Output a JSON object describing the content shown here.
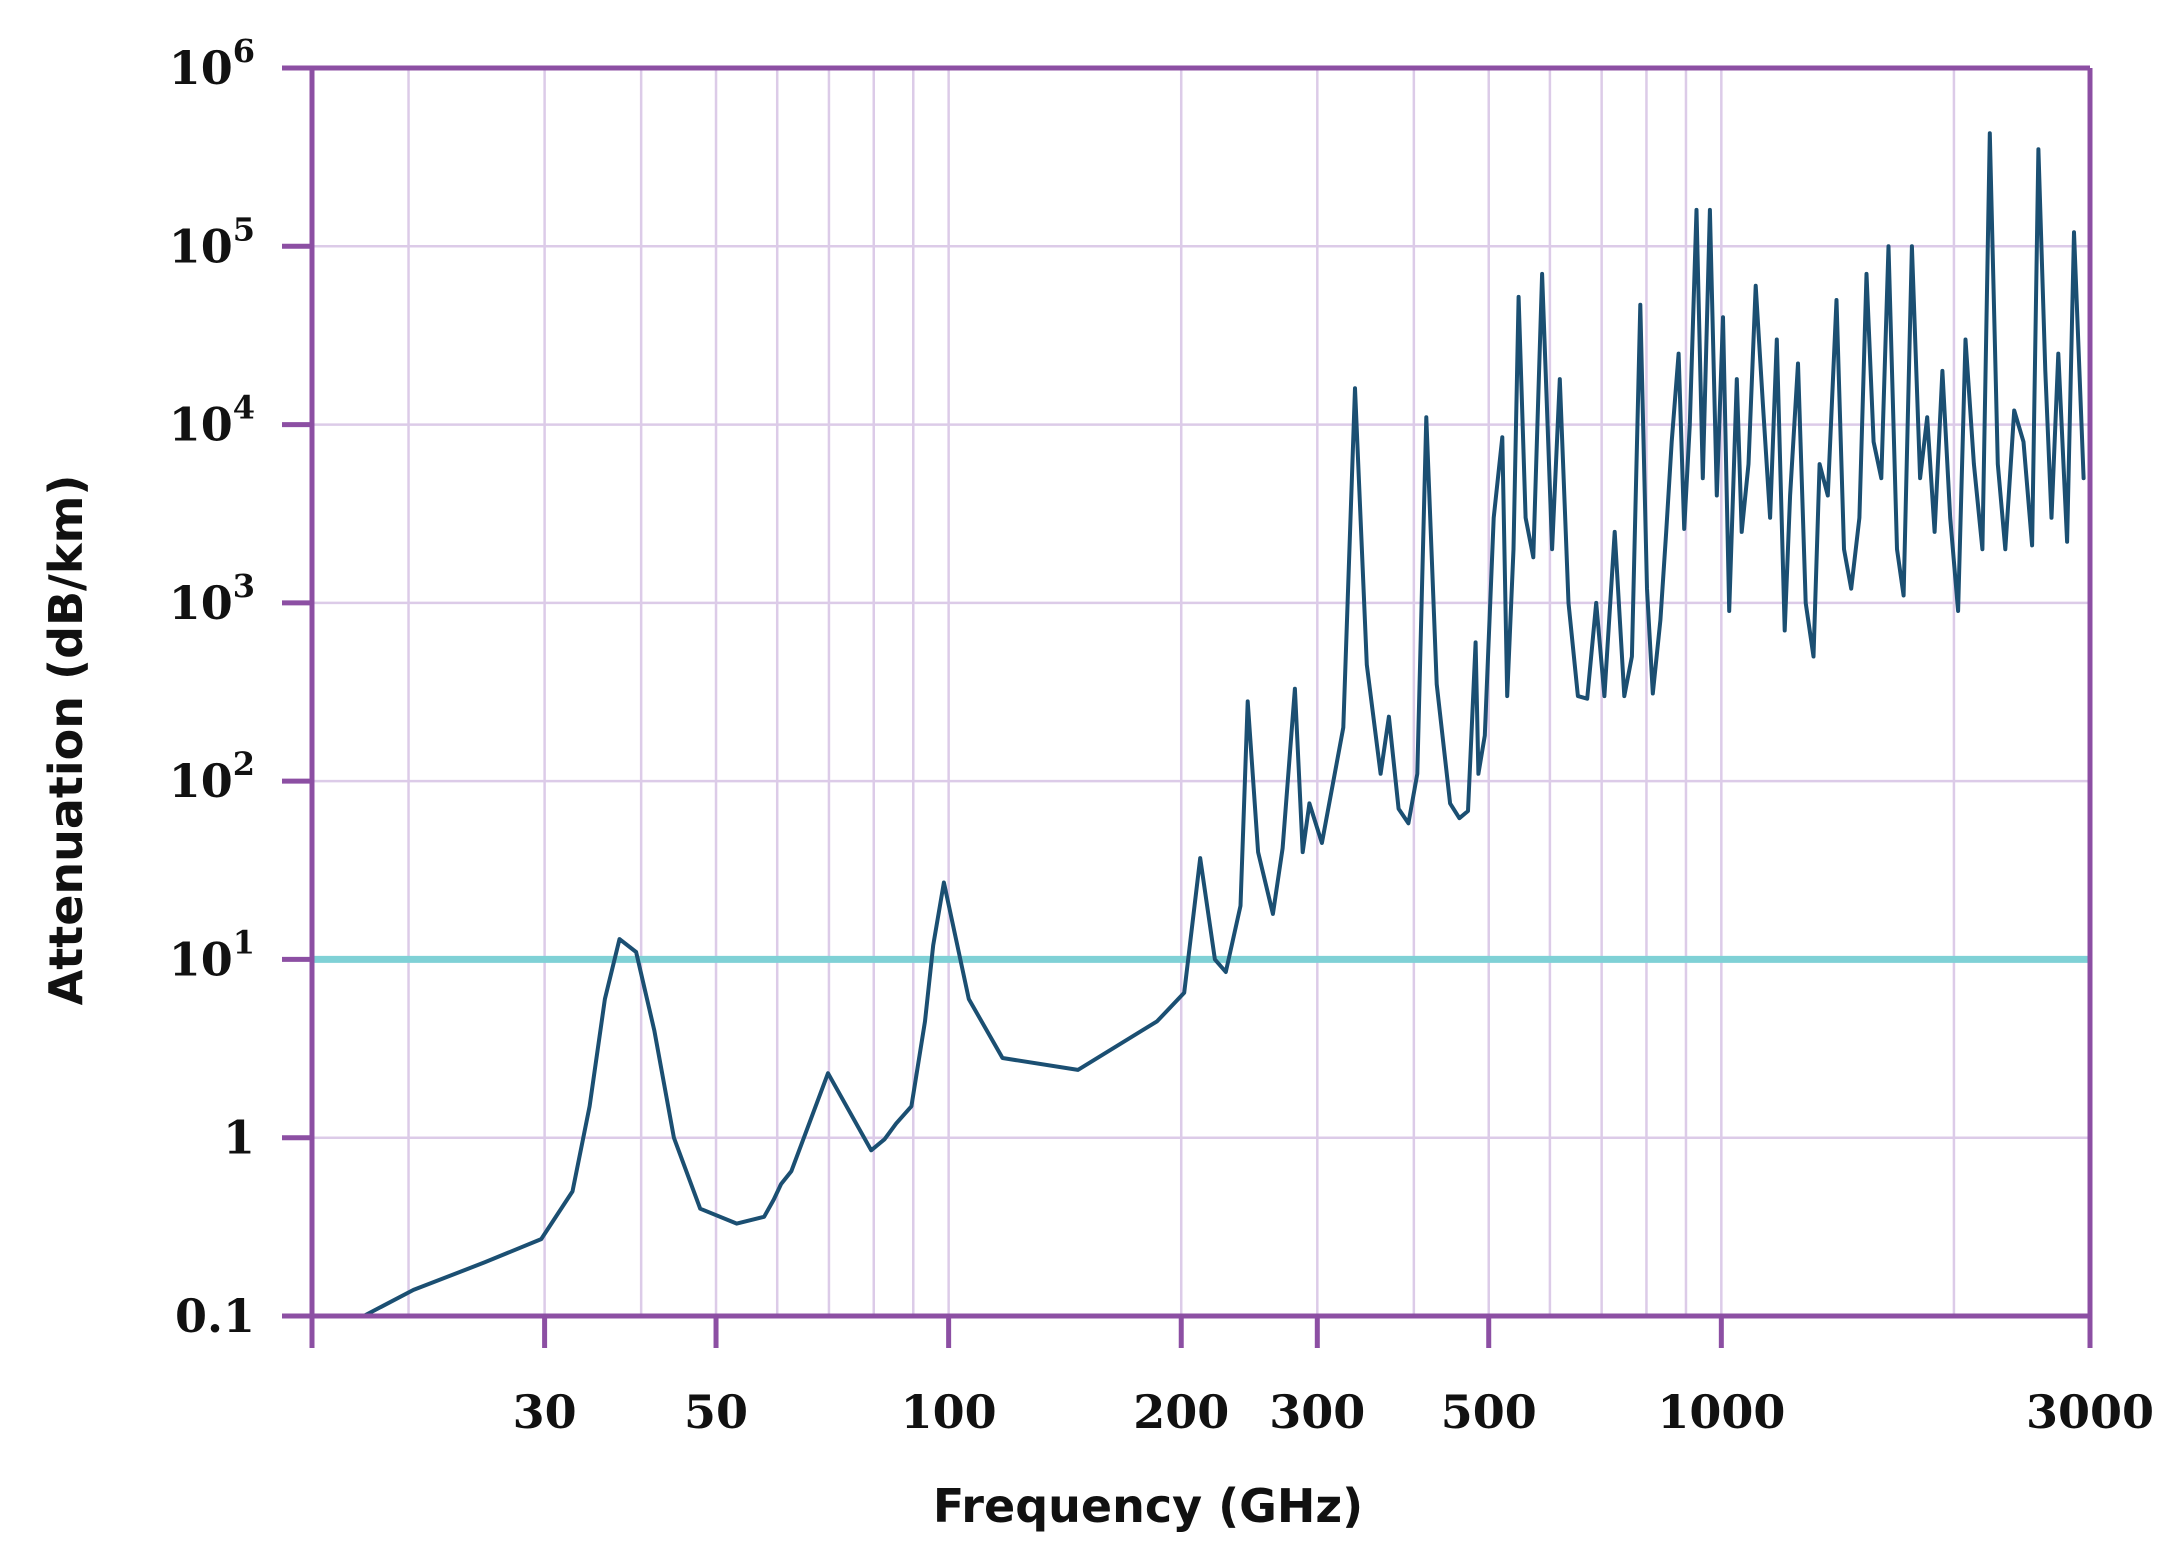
{
  "chart_data": {
    "type": "line",
    "xlabel": "Frequency (GHz)",
    "ylabel": "Attenuation (dB/km)",
    "xscale": "log",
    "yscale": "log",
    "xlim": [
      15,
      3000
    ],
    "ylim": [
      0.1,
      1000000
    ],
    "grid": true,
    "x_ticks": [
      {
        "value": 30,
        "label": "30"
      },
      {
        "value": 50,
        "label": "50"
      },
      {
        "value": 100,
        "label": "100"
      },
      {
        "value": 200,
        "label": "200"
      },
      {
        "value": 300,
        "label": "300"
      },
      {
        "value": 500,
        "label": "500"
      },
      {
        "value": 1000,
        "label": "1000"
      },
      {
        "value": 3000,
        "label": "3000"
      }
    ],
    "y_ticks": [
      {
        "value": 0.1,
        "base": "0.1",
        "exp": ""
      },
      {
        "value": 1,
        "base": "1",
        "exp": ""
      },
      {
        "value": 10,
        "base": "10",
        "exp": "1"
      },
      {
        "value": 100,
        "base": "10",
        "exp": "2"
      },
      {
        "value": 1000,
        "base": "10",
        "exp": "3"
      },
      {
        "value": 10000,
        "base": "10",
        "exp": "4"
      },
      {
        "value": 100000,
        "base": "10",
        "exp": "5"
      },
      {
        "value": 1000000,
        "base": "10",
        "exp": "6"
      }
    ],
    "colors": {
      "frame": "#8c4fa3",
      "grid": "#dccbe8",
      "series": "#1b4f72",
      "reference": "#7fd1d6"
    },
    "reference_line": {
      "y": 10
    },
    "series": [
      {
        "x": [
          17.5,
          20.3,
          25.1,
          29.7,
          32.6,
          34.3,
          35.9,
          37.5,
          39.4,
          41.6,
          44.1,
          47.7,
          53.2,
          57.7,
          59.4,
          60.7,
          62.6,
          69.8,
          79.4,
          82.6,
          85.5,
          89.5,
          93.2,
          95.5,
          98.6,
          106.2,
          117.4,
          147.0,
          186.1,
          201.8,
          211.6,
          221.1,
          228.4,
          238.6,
          243.8,
          251.5,
          262.8,
          270.5,
          280.6,
          287.2,
          293.0,
          304.1,
          324.2,
          335.7,
          347.7,
          362.3,
          371.3,
          382.2,
          393.6,
          404.2,
          415.1,
          428.2,
          445.6,
          458.1,
          470.0,
          480.8,
          484.9,
          494.2,
          507.5,
          520.6,
          528.3,
          538.3,
          546.5,
          558.0,
          571.1,
          586.2,
          603.9,
          617.9,
          634.1,
          652.1,
          670.6,
          688.8,
          705.8,
          727.7,
          749.0,
          766.1,
          785.5,
          801.4,
          815.4,
          834.0,
          848.4,
          862.4,
          880.5,
          895.3,
          910.2,
          928.7,
          946.4,
          966.5,
          986.7,
          1005.1,
          1023.7,
          1047.2,
          1062.6,
          1084.3,
          1107.8,
          1131.8,
          1156.4,
          1179.8,
          1207.8,
          1227.3,
          1256.5,
          1286.0,
          1316.1,
          1340.3,
          1373.4,
          1409.4,
          1441.4,
          1472.7,
          1509.1,
          1541.1,
          1574.4,
          1610.8,
          1645.6,
          1687.9,
          1721.3,
          1764.5,
          1808.1,
          1847.1,
          1887.9,
          1932.4,
          1977.7,
          2025.1,
          2070.0,
          2122.4,
          2177.2,
          2225.3,
          2279.6,
          2331.0,
          2393.1,
          2460.6,
          2524.4,
          2572.3,
          2625.5,
          2675.0,
          2729.6,
          2802.0,
          2860.6,
          2943.4
        ],
        "y": [
          0.1,
          0.14,
          0.2,
          0.27,
          0.5,
          1.5,
          6,
          13,
          11,
          4,
          1,
          0.4,
          0.33,
          0.36,
          0.45,
          0.55,
          0.65,
          2.3,
          0.85,
          0.98,
          1.2,
          1.5,
          4.5,
          12,
          27,
          6,
          2.8,
          2.4,
          4.5,
          6.5,
          37,
          10,
          8.5,
          20,
          280,
          40,
          18,
          42,
          330,
          40,
          75,
          45,
          200,
          16000,
          450,
          110,
          230,
          70,
          58,
          110,
          11000,
          350,
          75,
          62,
          68,
          600,
          110,
          180,
          3000,
          8500,
          300,
          2000,
          52000,
          3000,
          1800,
          70000,
          2000,
          18000,
          1000,
          300,
          290,
          1000,
          300,
          2500,
          300,
          500,
          47000,
          1200,
          310,
          800,
          2500,
          8000,
          25000,
          2600,
          10000,
          160000,
          5000,
          160000,
          4000,
          40000,
          900,
          18000,
          2500,
          6000,
          60000,
          13000,
          3000,
          30000,
          700,
          4000,
          22000,
          1000,
          500,
          6000,
          4000,
          50000,
          2000,
          1200,
          3000,
          70000,
          8000,
          5000,
          100000,
          2000,
          1100,
          100000,
          5000,
          11000,
          2500,
          20000,
          3000,
          900,
          30000,
          6000,
          2000,
          430000,
          6000,
          2000,
          12000,
          8000,
          2100,
          350000,
          20000,
          3000,
          25000,
          2200,
          120000,
          5000
        ]
      }
    ]
  }
}
